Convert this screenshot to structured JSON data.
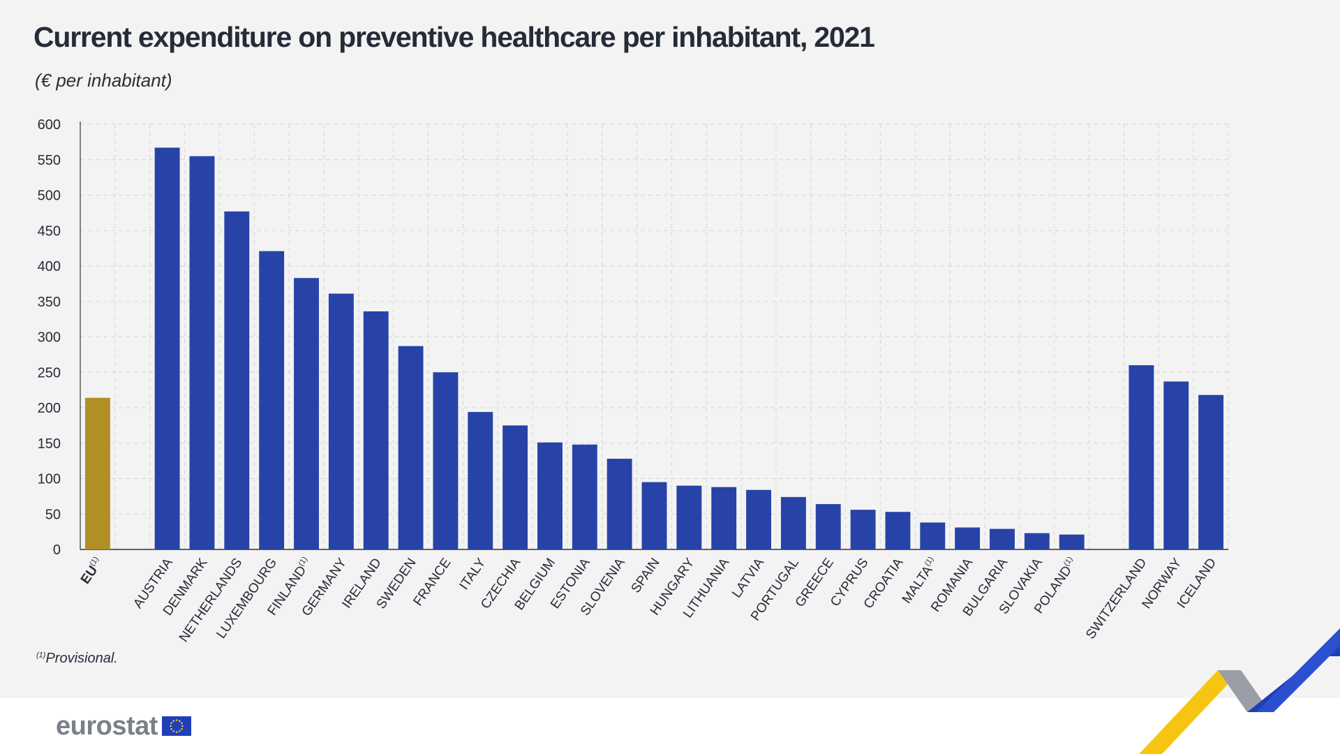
{
  "header": {
    "title": "Current expenditure on preventive healthcare per inhabitant, 2021",
    "subtitle": "(€ per inhabitant)"
  },
  "footnote": {
    "mark": "(1)",
    "text": "Provisional."
  },
  "brand": {
    "logo_text": "eurostat",
    "logo_color": "#7a7f88"
  },
  "colors": {
    "bar": "#2743a8",
    "eu_bar": "#b08f25",
    "grid": "#d6d6d6",
    "text": "#262b38",
    "decor_yellow": "#f6c512",
    "decor_grey": "#9a9ea6",
    "decor_blue": "#1f3fb8"
  },
  "chart_data": {
    "type": "bar",
    "title": "Current expenditure on preventive healthcare per inhabitant, 2021",
    "subtitle": "(€ per inhabitant)",
    "ylim": [
      0,
      600
    ],
    "yticks": [
      0,
      50,
      100,
      150,
      200,
      250,
      300,
      350,
      400,
      450,
      500,
      550,
      600
    ],
    "grid": true,
    "categories": [
      "EU",
      "AUSTRIA",
      "DENMARK",
      "NETHERLANDS",
      "LUXEMBOURG",
      "FINLAND",
      "GERMANY",
      "IRELAND",
      "SWEDEN",
      "FRANCE",
      "ITALY",
      "CZECHIA",
      "BELGIUM",
      "ESTONIA",
      "SLOVENIA",
      "SPAIN",
      "HUNGARY",
      "LITHUANIA",
      "LATVIA",
      "PORTUGAL",
      "GREECE",
      "CYPRUS",
      "CROATIA",
      "MALTA",
      "ROMANIA",
      "BULGARIA",
      "SLOVAKIA",
      "POLAND",
      "SWITZERLAND",
      "NORWAY",
      "ICELAND"
    ],
    "values": [
      214,
      567,
      555,
      477,
      421,
      383,
      361,
      336,
      287,
      250,
      194,
      175,
      151,
      148,
      128,
      95,
      90,
      88,
      84,
      74,
      64,
      56,
      53,
      38,
      31,
      29,
      23,
      21,
      260,
      237,
      218
    ],
    "footnote_marks": [
      1,
      0,
      0,
      0,
      0,
      1,
      0,
      0,
      0,
      0,
      0,
      0,
      0,
      0,
      0,
      0,
      0,
      0,
      0,
      0,
      0,
      0,
      0,
      1,
      0,
      0,
      0,
      1,
      0,
      0,
      0
    ],
    "highlight": [
      "EU"
    ]
  }
}
